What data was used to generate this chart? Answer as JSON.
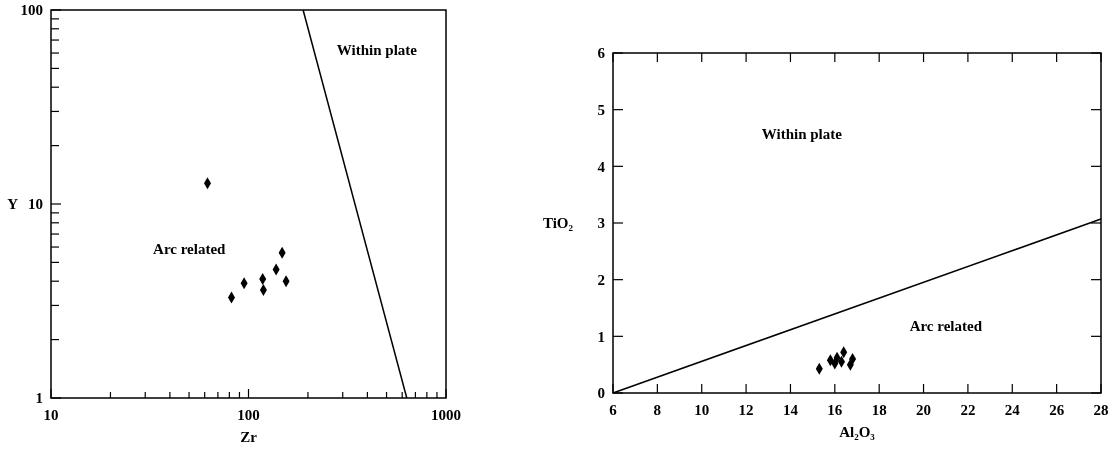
{
  "chart_data": [
    {
      "type": "scatter",
      "xlabel": "Zr",
      "ylabel": "Y",
      "log": "xy",
      "grid": false,
      "marker": "diamond",
      "xlim": [
        10,
        1000
      ],
      "ylim": [
        1,
        100
      ],
      "xticks": [
        10,
        {
          "value": 20,
          "label": null
        },
        {
          "value": 30,
          "label": null
        },
        {
          "value": 40,
          "label": null
        },
        {
          "value": 50,
          "label": null
        },
        {
          "value": 60,
          "label": null
        },
        {
          "value": 70,
          "label": null
        },
        {
          "value": 80,
          "label": null
        },
        {
          "value": 90,
          "label": null
        },
        100,
        {
          "value": 200,
          "label": null
        },
        {
          "value": 300,
          "label": null
        },
        {
          "value": 400,
          "label": null
        },
        {
          "value": 500,
          "label": null
        },
        {
          "value": 600,
          "label": null
        },
        {
          "value": 700,
          "label": null
        },
        {
          "value": 800,
          "label": null
        },
        {
          "value": 900,
          "label": null
        },
        1000
      ],
      "yticks": [
        1,
        {
          "value": 2,
          "label": null
        },
        {
          "value": 3,
          "label": null
        },
        {
          "value": 4,
          "label": null
        },
        {
          "value": 5,
          "label": null
        },
        {
          "value": 6,
          "label": null
        },
        {
          "value": 7,
          "label": null
        },
        {
          "value": 8,
          "label": null
        },
        {
          "value": 9,
          "label": null
        },
        10,
        {
          "value": 20,
          "label": null
        },
        {
          "value": 30,
          "label": null
        },
        {
          "value": 40,
          "label": null
        },
        {
          "value": 50,
          "label": null
        },
        {
          "value": 60,
          "label": null
        },
        {
          "value": 70,
          "label": null
        },
        {
          "value": 80,
          "label": null
        },
        {
          "value": 90,
          "label": null
        },
        100
      ],
      "series": [
        {
          "color": "#000000",
          "x": [
            62,
            82,
            95,
            118,
            119,
            138,
            148,
            155
          ],
          "values": [
            12.8,
            3.3,
            3.9,
            4.1,
            3.6,
            4.6,
            5.6,
            4.0
          ]
        },
        {
          "type": "line",
          "color": "#000000",
          "marker": "none",
          "x": [
            189,
            633
          ],
          "values": [
            100,
            1
          ]
        }
      ],
      "annotations": [
        "Within plate",
        "Arc related"
      ]
    },
    {
      "type": "scatter",
      "xlabel": "Al₂O₃",
      "ylabel": "TiO₂",
      "grid": false,
      "marker": "diamond",
      "xlim": [
        6,
        28
      ],
      "ylim": [
        0,
        6
      ],
      "xticks": [
        6,
        8,
        10,
        12,
        14,
        16,
        18,
        20,
        22,
        24,
        26,
        28
      ],
      "yticks": [
        0,
        1,
        2,
        3,
        4,
        5,
        6
      ],
      "series": [
        {
          "color": "#000000",
          "x": [
            15.3,
            15.8,
            16.0,
            16.1,
            16.3,
            16.4,
            16.7,
            16.8
          ],
          "values": [
            0.43,
            0.58,
            0.52,
            0.62,
            0.55,
            0.72,
            0.5,
            0.6
          ]
        },
        {
          "type": "line",
          "color": "#000000",
          "marker": "none",
          "x": [
            6,
            28
          ],
          "values": [
            0,
            3.07
          ]
        }
      ],
      "annotations": [
        "Within plate",
        "Arc related"
      ]
    }
  ]
}
